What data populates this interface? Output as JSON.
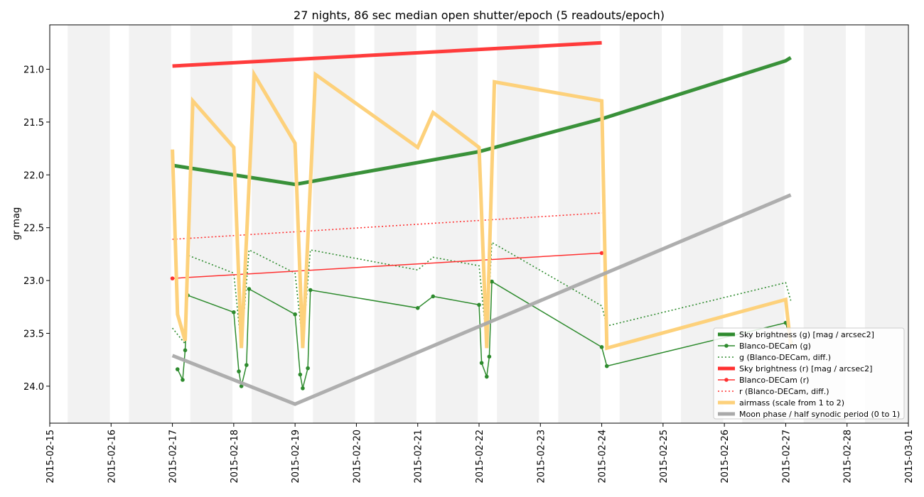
{
  "chart_data": {
    "type": "line",
    "title": "27 nights, 86 sec median open shutter/epoch (5 readouts/epoch)",
    "xlabel": "",
    "ylabel": "gr mag",
    "x_tick_labels": [
      "2015-02-15",
      "2015-02-16",
      "2015-02-17",
      "2015-02-18",
      "2015-02-19",
      "2015-02-20",
      "2015-02-21",
      "2015-02-22",
      "2015-02-23",
      "2015-02-24",
      "2015-02-25",
      "2015-02-26",
      "2015-02-27",
      "2015-02-28",
      "2015-03-01"
    ],
    "y_tick_labels": [
      "21.0",
      "21.5",
      "22.0",
      "22.5",
      "23.0",
      "23.5",
      "24.0"
    ],
    "y_ticks": [
      21.0,
      21.5,
      22.0,
      22.5,
      23.0,
      23.5,
      24.0
    ],
    "xlim": [
      "2015-02-15",
      "2015-03-01"
    ],
    "ylim": [
      24.35,
      20.58
    ],
    "y_inverted": true,
    "grid": false,
    "legend_position": "lower-right",
    "night_bands": [
      [
        "2015-02-15 07:00",
        "2015-02-15 23:30"
      ],
      [
        "2015-02-16 07:00",
        "2015-02-16 23:30"
      ],
      [
        "2015-02-17 07:00",
        "2015-02-17 23:30"
      ],
      [
        "2015-02-18 07:00",
        "2015-02-18 23:30"
      ],
      [
        "2015-02-19 07:00",
        "2015-02-19 23:30"
      ],
      [
        "2015-02-20 07:00",
        "2015-02-20 23:30"
      ],
      [
        "2015-02-21 07:00",
        "2015-02-21 23:30"
      ],
      [
        "2015-02-22 07:00",
        "2015-02-22 23:30"
      ],
      [
        "2015-02-23 07:00",
        "2015-02-23 23:30"
      ],
      [
        "2015-02-24 07:00",
        "2015-02-24 23:30"
      ],
      [
        "2015-02-25 07:00",
        "2015-02-25 23:30"
      ],
      [
        "2015-02-26 07:00",
        "2015-02-26 23:30"
      ],
      [
        "2015-02-27 07:00",
        "2015-02-27 23:30"
      ],
      [
        "2015-02-28 07:00",
        "2015-02-28 23:30"
      ]
    ],
    "series": [
      {
        "name": "Sky brightness (g) [mag / arcsec2]",
        "color": "#2e8b2e",
        "style": "thick",
        "x": [
          "2015-02-17 00:00",
          "2015-02-19 00:00",
          "2015-02-22 00:00",
          "2015-02-24 00:00",
          "2015-02-27 00:00",
          "2015-02-27 02:00"
        ],
        "y": [
          21.91,
          22.09,
          21.78,
          21.47,
          20.92,
          20.89
        ]
      },
      {
        "name": "Blanco-DECam (g)",
        "color": "#2e8b2e",
        "style": "marker",
        "x": [
          "2015-02-17 02:00",
          "2015-02-17 04:00",
          "2015-02-17 05:00",
          "2015-02-17 06:00",
          "2015-02-18 00:00",
          "2015-02-18 02:00",
          "2015-02-18 03:00",
          "2015-02-18 05:00",
          "2015-02-18 06:00",
          "2015-02-19 00:00",
          "2015-02-19 02:00",
          "2015-02-19 03:00",
          "2015-02-19 05:00",
          "2015-02-19 06:00",
          "2015-02-21 00:00",
          "2015-02-21 06:00",
          "2015-02-22 00:00",
          "2015-02-22 01:00",
          "2015-02-22 03:00",
          "2015-02-22 04:00",
          "2015-02-22 05:00",
          "2015-02-24 00:00",
          "2015-02-24 02:00",
          "2015-02-27 00:00",
          "2015-02-27 02:00"
        ],
        "y": [
          23.84,
          23.94,
          23.66,
          23.14,
          23.3,
          23.86,
          24.0,
          23.8,
          23.08,
          23.32,
          23.89,
          24.02,
          23.83,
          23.09,
          23.26,
          23.15,
          23.23,
          23.78,
          23.91,
          23.72,
          23.01,
          23.63,
          23.81,
          23.4,
          23.58
        ]
      },
      {
        "name": "g (Blanco-DECam, diff.)",
        "color": "#2e8b2e",
        "style": "dotted",
        "x": [
          "2015-02-17 00:00",
          "2015-02-17 05:00",
          "2015-02-17 06:00",
          "2015-02-18 00:00",
          "2015-02-18 03:00",
          "2015-02-18 06:00",
          "2015-02-19 00:00",
          "2015-02-19 03:00",
          "2015-02-19 06:00",
          "2015-02-21 00:00",
          "2015-02-21 06:00",
          "2015-02-22 00:00",
          "2015-02-22 03:00",
          "2015-02-22 05:00",
          "2015-02-24 00:00",
          "2015-02-24 02:00",
          "2015-02-27 00:00",
          "2015-02-27 02:00"
        ],
        "y": [
          23.45,
          23.6,
          22.76,
          22.93,
          23.64,
          22.71,
          22.93,
          23.6,
          22.71,
          22.9,
          22.78,
          22.86,
          23.58,
          22.64,
          23.24,
          23.43,
          23.02,
          23.19
        ]
      },
      {
        "name": "Sky brightness (r) [mag / arcsec2]",
        "color": "#ff3030",
        "style": "thick",
        "x": [
          "2015-02-17 00:00",
          "2015-02-24 00:00"
        ],
        "y": [
          20.97,
          20.75
        ]
      },
      {
        "name": "Blanco-DECam (r)",
        "color": "#ff3030",
        "style": "marker",
        "x": [
          "2015-02-17 00:00",
          "2015-02-24 00:00"
        ],
        "y": [
          22.98,
          22.74
        ]
      },
      {
        "name": "r (Blanco-DECam, diff.)",
        "color": "#ff3030",
        "style": "dotted",
        "x": [
          "2015-02-17 00:00",
          "2015-02-24 00:00"
        ],
        "y": [
          22.61,
          22.36
        ]
      },
      {
        "name": "airmass (scale from 1 to 2)",
        "color": "#fdd17b",
        "style": "thick",
        "x": [
          "2015-02-17 00:00",
          "2015-02-17 02:00",
          "2015-02-17 05:00",
          "2015-02-17 08:00",
          "2015-02-18 00:00",
          "2015-02-18 03:00",
          "2015-02-18 08:00",
          "2015-02-19 00:00",
          "2015-02-19 03:00",
          "2015-02-19 08:00",
          "2015-02-21 00:00",
          "2015-02-21 06:00",
          "2015-02-22 00:00",
          "2015-02-22 03:00",
          "2015-02-22 06:00",
          "2015-02-24 00:00",
          "2015-02-24 02:00",
          "2015-02-27 00:00",
          "2015-02-27 02:00"
        ],
        "y": [
          21.76,
          23.32,
          23.57,
          21.3,
          21.74,
          23.64,
          21.05,
          21.7,
          23.64,
          21.05,
          21.74,
          21.41,
          21.74,
          23.64,
          21.12,
          21.3,
          23.64,
          23.18,
          23.62
        ]
      },
      {
        "name": "Moon phase / half synodic period (0 to 1)",
        "color": "#aaaaaa",
        "style": "thick",
        "x": [
          "2015-02-17 00:00",
          "2015-02-19 00:00",
          "2015-02-27 02:00"
        ],
        "y": [
          23.71,
          24.17,
          22.19
        ]
      }
    ]
  }
}
